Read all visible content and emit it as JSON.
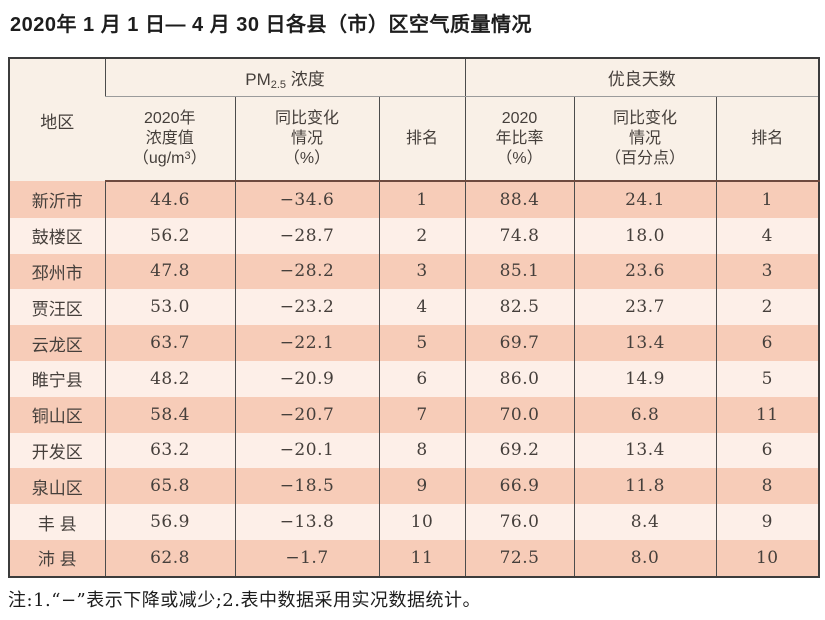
{
  "title": "2020年 1 月 1 日— 4 月 30 日各县（市）区空气质量情况",
  "footnote": "注:1.“−”表示下降或减少;2.表中数据采用实况数据统计。",
  "colors": {
    "row-odd": "#f7ccb8",
    "row-even": "#fdefe8",
    "header-bg": "#f9f0e7",
    "border-outer": "#3c3c3c",
    "border-inner": "#4c4c4c",
    "border-gray": "#9b9b9b",
    "border-red": "#6e4a3f",
    "text-dark": "#453f3b"
  },
  "table": {
    "region_header": "地区",
    "pm_group": {
      "prefix": "PM",
      "sub": "2.5",
      "suffix": " 浓度"
    },
    "good_days_group": "优良天数",
    "subheaders": [
      {
        "line1": "2020年",
        "line2": "浓度值",
        "unit_prefix": "（ug/m",
        "unit_sup": "3",
        "unit_suffix": "）"
      },
      {
        "line1": "同比变化",
        "line2": "情况",
        "line3": "（%）"
      },
      {
        "label": "排名"
      },
      {
        "line1": "2020",
        "line2": "年比率",
        "line3": "（%）"
      },
      {
        "line1": "同比变化",
        "line2": "情况",
        "line3": "（百分点）"
      },
      {
        "label": "排名"
      }
    ]
  },
  "chart_data": {
    "type": "table",
    "title": "2020年1月1日—4月30日各县（市）区空气质量情况",
    "columns": [
      "地区",
      "PM2.5浓度 2020年浓度值（ug/m3）",
      "PM2.5浓度 同比变化情况（%）",
      "PM2.5浓度 排名",
      "优良天数 2020年比率（%）",
      "优良天数 同比变化情况（百分点）",
      "优良天数 排名"
    ],
    "rows": [
      [
        "新沂市",
        "44.6",
        "−34.6",
        "1",
        "88.4",
        "24.1",
        "1"
      ],
      [
        "鼓楼区",
        "56.2",
        "−28.7",
        "2",
        "74.8",
        "18.0",
        "4"
      ],
      [
        "邳州市",
        "47.8",
        "−28.2",
        "3",
        "85.1",
        "23.6",
        "3"
      ],
      [
        "贾汪区",
        "53.0",
        "−23.2",
        "4",
        "82.5",
        "23.7",
        "2"
      ],
      [
        "云龙区",
        "63.7",
        "−22.1",
        "5",
        "69.7",
        "13.4",
        "6"
      ],
      [
        "睢宁县",
        "48.2",
        "−20.9",
        "6",
        "86.0",
        "14.9",
        "5"
      ],
      [
        "铜山区",
        "58.4",
        "−20.7",
        "7",
        "70.0",
        "6.8",
        "11"
      ],
      [
        "开发区",
        "63.2",
        "−20.1",
        "8",
        "69.2",
        "13.4",
        "6"
      ],
      [
        "泉山区",
        "65.8",
        "−18.5",
        "9",
        "66.9",
        "11.8",
        "8"
      ],
      [
        "丰 县",
        "56.9",
        "−13.8",
        "10",
        "76.0",
        "8.4",
        "9"
      ],
      [
        "沛 县",
        "62.8",
        "−1.7",
        "11",
        "72.5",
        "8.0",
        "10"
      ]
    ]
  }
}
